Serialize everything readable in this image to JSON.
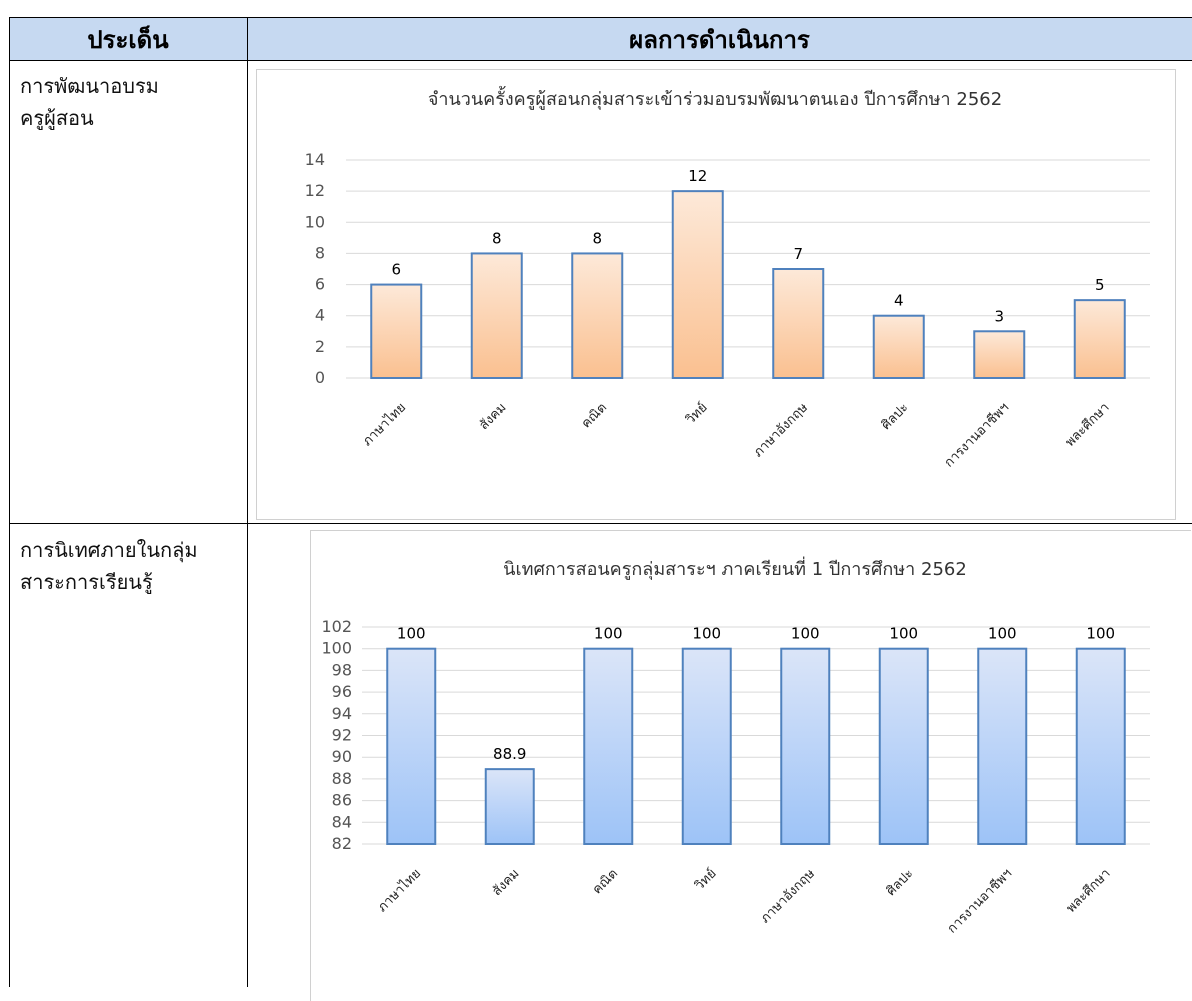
{
  "header": {
    "col1": "ประเด็น",
    "col2": "ผลการดำเนินการ"
  },
  "rows": [
    {
      "label_line1": "การพัฒนาอบรม",
      "label_line2": "ครูผู้สอน"
    },
    {
      "label_line1": "การนิเทศภายในกลุ่ม",
      "label_line2": "สาระการเรียนรู้"
    }
  ],
  "colors": {
    "header_bg": "#c6d9f1",
    "chart1_bar_top": "#fde9d9",
    "chart1_bar_bottom": "#fac090",
    "chart2_bar_top": "#dbe5f8",
    "chart2_bar_bottom": "#9dc3f7",
    "bar_border": "#4f81bd"
  },
  "chart_data": [
    {
      "type": "bar",
      "title": "จำนวนครั้งครูผู้สอนกลุ่มสาระเข้าร่วมอบรมพัฒนาตนเอง ปีการศึกษา 2562",
      "categories": [
        "ภาษาไทย",
        "สังคม",
        "คณิต",
        "วิทย์",
        "ภาษาอังกฤษ",
        "ศิลปะ",
        "การงานอาชีพฯ",
        "พละศึกษา"
      ],
      "values": [
        6,
        8,
        8,
        12,
        7,
        4,
        3,
        5
      ],
      "value_labels": [
        "6",
        "8",
        "8",
        "12",
        "7",
        "4",
        "3",
        "5"
      ],
      "yticks": [
        "0",
        "2",
        "4",
        "6",
        "8",
        "10",
        "12",
        "14"
      ],
      "ylim": [
        0,
        14
      ],
      "grid": true,
      "legend": "none"
    },
    {
      "type": "bar",
      "title": "นิเทศการสอนครูกลุ่มสาระฯ ภาคเรียนที่ 1 ปีการศึกษา 2562",
      "categories": [
        "ภาษาไทย",
        "สังคม",
        "คณิต",
        "วิทย์",
        "ภาษาอังกฤษ",
        "ศิลปะ",
        "การงานอาชีพฯ",
        "พละศึกษา"
      ],
      "values": [
        100,
        88.9,
        100,
        100,
        100,
        100,
        100,
        100
      ],
      "value_labels": [
        "100",
        "88.9",
        "100",
        "100",
        "100",
        "100",
        "100",
        "100"
      ],
      "yticks": [
        "82",
        "84",
        "86",
        "88",
        "90",
        "92",
        "94",
        "96",
        "98",
        "100",
        "102"
      ],
      "ylim": [
        82,
        102
      ],
      "grid": true,
      "legend": "none"
    }
  ]
}
